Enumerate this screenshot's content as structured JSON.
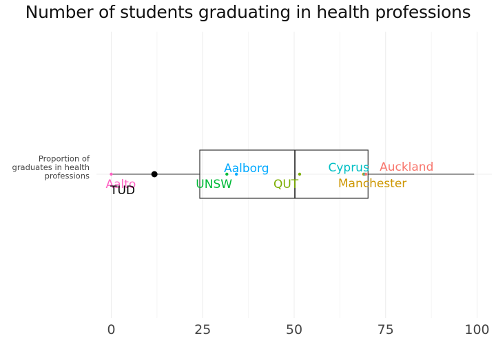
{
  "chart_data": {
    "type": "boxplot",
    "title": "Number of students graduating in health professions",
    "category_label_lines": [
      "Proportion of",
      "graduates in health",
      "professions"
    ],
    "x_ticks": [
      0,
      25,
      50,
      75,
      100
    ],
    "xlim": [
      -4,
      104
    ],
    "box": {
      "min": 0,
      "q1": 24.2,
      "median": 50.2,
      "q3": 70.2,
      "max": 99.2
    },
    "grid": true,
    "points": [
      {
        "name": "Aalto",
        "value": 0,
        "color": "#FF61C3"
      },
      {
        "name": "TUD",
        "value": 11.8,
        "color": "#000000",
        "highlight": true
      },
      {
        "name": "UNSW",
        "value": 31.6,
        "color": "#00BA38"
      },
      {
        "name": "Aalborg",
        "value": 34.2,
        "color": "#00A9FF"
      },
      {
        "name": "QUT",
        "value": 51.5,
        "color": "#7CAE00"
      },
      {
        "name": "Manchester",
        "value": 69.0,
        "color": "#CD9600"
      },
      {
        "name": "Cyprus",
        "value": 69.3,
        "color": "#00BFC4"
      },
      {
        "name": "Auckland",
        "value": 69.6,
        "color": "#F8766D"
      }
    ]
  }
}
